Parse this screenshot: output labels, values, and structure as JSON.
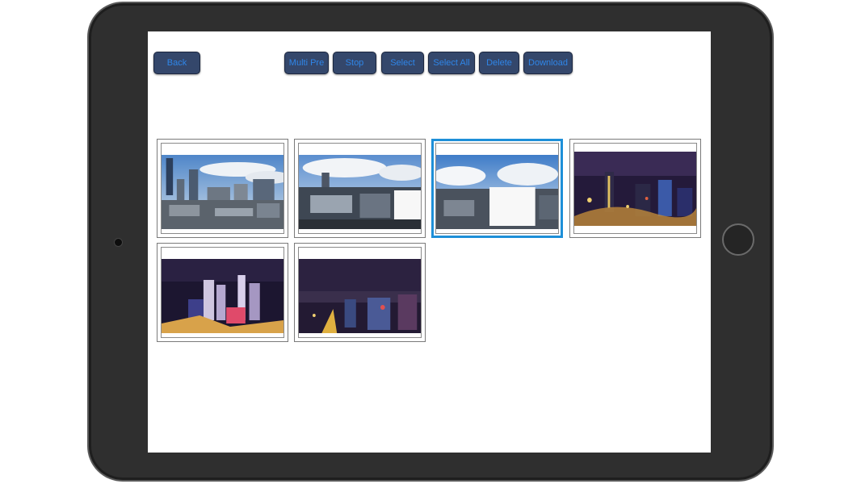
{
  "toolbar": {
    "back": "Back",
    "multi_pre": "Multi Pre",
    "stop": "Stop",
    "select": "Select",
    "select_all": "Select All",
    "delete": "Delete",
    "download": "Download"
  },
  "gallery": {
    "items": [
      {
        "scene": "day-city-skyline",
        "selected": false
      },
      {
        "scene": "day-city-rooftops",
        "selected": false
      },
      {
        "scene": "day-city-clouds",
        "selected": true
      },
      {
        "scene": "night-city-lights",
        "selected": false
      },
      {
        "scene": "night-city-highrises",
        "selected": false
      },
      {
        "scene": "night-city-horizon",
        "selected": false
      }
    ]
  },
  "colors": {
    "button_bg": "#34476b",
    "button_text": "#2f86e8",
    "selection_border": "#1e8fd8"
  }
}
